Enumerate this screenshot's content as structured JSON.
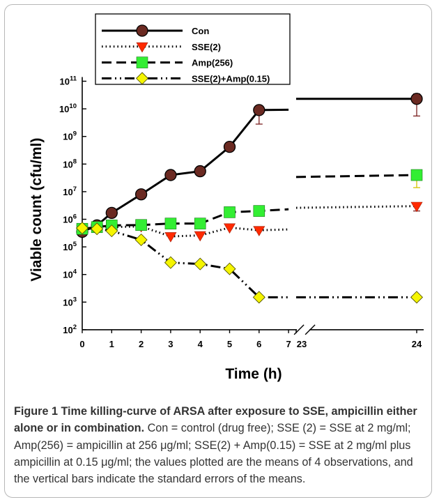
{
  "chart_data": {
    "type": "line",
    "ylabel": "Viable count (cfu/ml)",
    "xlabel": "Time (h)",
    "y_scale": "log",
    "ylim_exp": [
      2,
      11
    ],
    "x_ticks_left": [
      0,
      1,
      2,
      3,
      4,
      5,
      6,
      7
    ],
    "x_tick_right": 23,
    "x_tick_last": 24,
    "axis_break": "between 7 and 23",
    "legend_position": "top-left",
    "series": [
      {
        "name": "Con",
        "style": "solid",
        "marker": "circle",
        "marker_color": "#6b2a22",
        "x": [
          0,
          0.5,
          1,
          2,
          3,
          4,
          5,
          6,
          24
        ],
        "values": [
          350000,
          600000,
          1700000,
          8000000,
          40000000,
          55000000,
          420000000,
          9000000000,
          23000000000
        ],
        "error_upper": [
          null,
          null,
          null,
          null,
          null,
          null,
          null,
          13000000000,
          35000000000
        ],
        "error_lower": [
          null,
          null,
          null,
          null,
          null,
          null,
          null,
          2800000000,
          5500000000
        ],
        "line_end": [
          7,
          9300000000
        ],
        "line_start_right": [
          23,
          23000000000
        ]
      },
      {
        "name": "SSE(2)",
        "style": "dotted",
        "marker": "triangle-down",
        "marker_color": "#ff2a00",
        "x": [
          0,
          0.5,
          1,
          2,
          3,
          4,
          5,
          6,
          24
        ],
        "values": [
          430000,
          500000,
          520000,
          550000,
          240000,
          260000,
          500000,
          400000,
          3000000
        ],
        "error_upper": [
          null,
          null,
          null,
          null,
          null,
          null,
          null,
          null,
          3600000
        ],
        "error_lower": [
          null,
          null,
          null,
          null,
          null,
          null,
          null,
          null,
          2000000
        ],
        "line_end": [
          7,
          430000
        ],
        "line_start_right": [
          23,
          2600000
        ]
      },
      {
        "name": "Amp(256)",
        "style": "dashed",
        "marker": "square",
        "marker_color": "#33ee33",
        "x": [
          0,
          0.5,
          1,
          2,
          3,
          4,
          5,
          6,
          24
        ],
        "values": [
          450000,
          520000,
          600000,
          620000,
          700000,
          700000,
          1800000,
          2000000,
          40000000
        ],
        "error_upper": [
          null,
          null,
          null,
          null,
          null,
          null,
          null,
          null,
          60000000
        ],
        "error_lower": [
          null,
          null,
          null,
          null,
          null,
          null,
          null,
          null,
          14000000
        ],
        "line_end": [
          7,
          2300000
        ],
        "line_start_right": [
          23,
          34000000
        ]
      },
      {
        "name": "SSE(2)+Amp(0.15)",
        "style": "dash-dot-dot",
        "marker": "diamond",
        "marker_color": "#f5f500",
        "x": [
          0,
          0.5,
          1,
          2,
          3,
          4,
          5,
          6,
          24
        ],
        "values": [
          480000,
          450000,
          380000,
          180000,
          27000,
          24000,
          16000,
          1500,
          1500
        ],
        "error_upper": [
          null,
          null,
          null,
          null,
          null,
          null,
          null,
          null,
          null
        ],
        "error_lower": [
          null,
          null,
          null,
          null,
          null,
          null,
          null,
          null,
          null
        ],
        "line_end": [
          7,
          1500
        ],
        "line_start_right": [
          23,
          1500
        ]
      }
    ]
  },
  "caption": {
    "lead": "Figure 1 Time killing-curve of ARSA after exposure to SSE, ampicillin either alone or in combination.",
    "body": " Con = control (drug free); SSE (2) = SSE at 2 mg/ml; Amp(256) = ampicillin at 256 μg/ml; SSE(2) + Amp(0.15) = SSE at 2 mg/ml plus ampicillin at 0.15 μg/ml; the values plotted are the means of 4 observations, and the vertical bars indicate the standard errors of the means."
  }
}
